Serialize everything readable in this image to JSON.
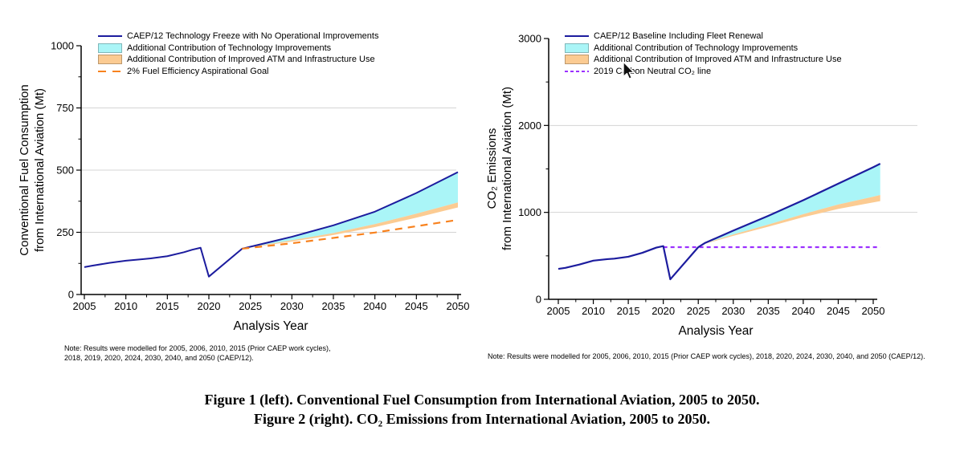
{
  "caption": {
    "line1": "Figure 1 (left). Conventional Fuel Consumption from International Aviation, 2005 to 2050.",
    "line2": "Figure 2 (right). CO₂ Emissions from International Aviation, 2005 to 2050."
  },
  "colors": {
    "baseline_blue": "#1c1c9e",
    "tech_cyan": "#aaf5f7",
    "atm_orange": "#fbcb92",
    "goal_orange": "#f8821e",
    "carbon_neutral_purple": "#9b30ff",
    "grid_gray": "#d4d4d4",
    "axis_black": "#000000"
  },
  "chart_data": [
    {
      "id": "fuel",
      "type": "line",
      "title": "",
      "xlabel": "Analysis Year",
      "ylabel_line1": "Conventional Fuel Consumption",
      "ylabel_line2": "from International Aviation (Mt)",
      "xlim": [
        2005,
        2050
      ],
      "ylim": [
        0,
        1000
      ],
      "xticks": [
        2005,
        2010,
        2015,
        2020,
        2025,
        2030,
        2035,
        2040,
        2045,
        2050
      ],
      "yticks": [
        0,
        250,
        500,
        750,
        1000
      ],
      "grid_y": [
        250,
        500,
        750
      ],
      "legend": [
        {
          "label": "CAEP/12 Technology Freeze with No Operational Improvements",
          "marker": "line",
          "color": "#1c1c9e"
        },
        {
          "label": "Additional Contribution of Technology Improvements",
          "marker": "swatch",
          "color": "#aaf5f7"
        },
        {
          "label": "Additional Contribution of Improved ATM and Infrastructure Use",
          "marker": "swatch",
          "color": "#fbcb92"
        },
        {
          "label": "2% Fuel Efficiency Aspirational Goal",
          "marker": "dashes",
          "color": "#f8821e",
          "dash": [
            10,
            8
          ]
        }
      ],
      "note_lines": [
        "Note: Results were modelled for 2005, 2006, 2010, 2015 (Prior CAEP work cycles),",
        "2018, 2019, 2020, 2024, 2030, 2040, and 2050 (CAEP/12)."
      ],
      "areas": [
        {
          "name": "technology-improvements-area",
          "color": "#aaf5f7",
          "x": [
            2024,
            2026,
            2030,
            2035,
            2040,
            2045,
            2050
          ],
          "top": [
            184,
            200,
            232,
            278,
            333,
            408,
            492
          ],
          "bottom": [
            184,
            196,
            218,
            247,
            283,
            325,
            370
          ]
        },
        {
          "name": "atm-infrastructure-area",
          "color": "#fbcb92",
          "x": [
            2024,
            2026,
            2030,
            2035,
            2040,
            2045,
            2050
          ],
          "top": [
            184,
            196,
            218,
            247,
            283,
            325,
            370
          ],
          "bottom": [
            184,
            194,
            213,
            239,
            271,
            309,
            350
          ]
        }
      ],
      "lines": [
        {
          "name": "caep12-technology-freeze-line",
          "color": "#1c1c9e",
          "width": 2,
          "x": [
            2005,
            2006,
            2008,
            2010,
            2012,
            2013,
            2015,
            2017,
            2018,
            2019,
            2020,
            2024,
            2026,
            2030,
            2035,
            2040,
            2045,
            2050
          ],
          "y": [
            110,
            116,
            127,
            136,
            142,
            145,
            154,
            170,
            180,
            188,
            72,
            184,
            200,
            232,
            278,
            333,
            408,
            492
          ]
        },
        {
          "name": "fuel-efficiency-goal-line",
          "color": "#f8821e",
          "width": 2.2,
          "dash": [
            9,
            7
          ],
          "x": [
            2024,
            2030,
            2040,
            2050
          ],
          "y": [
            184,
            206,
            249,
            300
          ]
        }
      ]
    },
    {
      "id": "co2",
      "type": "line",
      "title": "",
      "xlabel": "Analysis Year",
      "ylabel_line1": "CO₂ Emissions",
      "ylabel_line2": "from International Aviation (Mt)",
      "xlim": [
        2005,
        2050
      ],
      "ylim": [
        0,
        3000
      ],
      "xticks": [
        2005,
        2010,
        2015,
        2020,
        2025,
        2030,
        2035,
        2040,
        2045,
        2050
      ],
      "yticks": [
        0,
        1000,
        2000,
        3000
      ],
      "grid_y": [
        1000,
        2000
      ],
      "legend": [
        {
          "label": "CAEP/12 Baseline Including Fleet Renewal",
          "marker": "line",
          "color": "#1c1c9e"
        },
        {
          "label": "Additional Contribution of Technology Improvements",
          "marker": "swatch",
          "color": "#aaf5f7"
        },
        {
          "label": "Additional Contribution of Improved ATM and Infrastructure Use",
          "marker": "swatch",
          "color": "#fbcb92"
        },
        {
          "label": "2019 Carbon Neutral CO₂ line",
          "marker": "dashes",
          "color": "#9b30ff",
          "dash": [
            4,
            3
          ]
        }
      ],
      "note_lines": [
        "Note: Results were modelled for 2005, 2006, 2010, 2015 (Prior CAEP work cycles), 2018, 2020, 2024, 2030, 2040, and 2050 (CAEP/12)."
      ],
      "areas": [
        {
          "name": "technology-improvements-area",
          "color": "#aaf5f7",
          "x": [
            2026,
            2030,
            2035,
            2040,
            2045,
            2050,
            2051
          ],
          "top": [
            650,
            790,
            960,
            1140,
            1330,
            1520,
            1560
          ],
          "bottom": [
            645,
            745,
            860,
            980,
            1090,
            1180,
            1200
          ]
        },
        {
          "name": "atm-infrastructure-area",
          "color": "#fbcb92",
          "x": [
            2026,
            2030,
            2035,
            2040,
            2045,
            2050,
            2051
          ],
          "top": [
            645,
            745,
            860,
            980,
            1090,
            1180,
            1200
          ],
          "bottom": [
            640,
            730,
            835,
            945,
            1040,
            1115,
            1130
          ]
        }
      ],
      "lines": [
        {
          "name": "carbon-neutral-line",
          "color": "#9b30ff",
          "width": 2.2,
          "dash": [
            5,
            4
          ],
          "x": [
            2020,
            2051
          ],
          "y": [
            600,
            600
          ]
        },
        {
          "name": "caep12-baseline-line",
          "color": "#1c1c9e",
          "width": 2.2,
          "x": [
            2005,
            2006,
            2008,
            2010,
            2012,
            2013,
            2015,
            2017,
            2018,
            2019,
            2020,
            2021,
            2025,
            2026,
            2030,
            2035,
            2040,
            2045,
            2050,
            2051
          ],
          "y": [
            350,
            362,
            400,
            445,
            462,
            468,
            490,
            535,
            565,
            595,
            612,
            230,
            600,
            650,
            790,
            960,
            1140,
            1330,
            1520,
            1560
          ]
        }
      ]
    }
  ]
}
